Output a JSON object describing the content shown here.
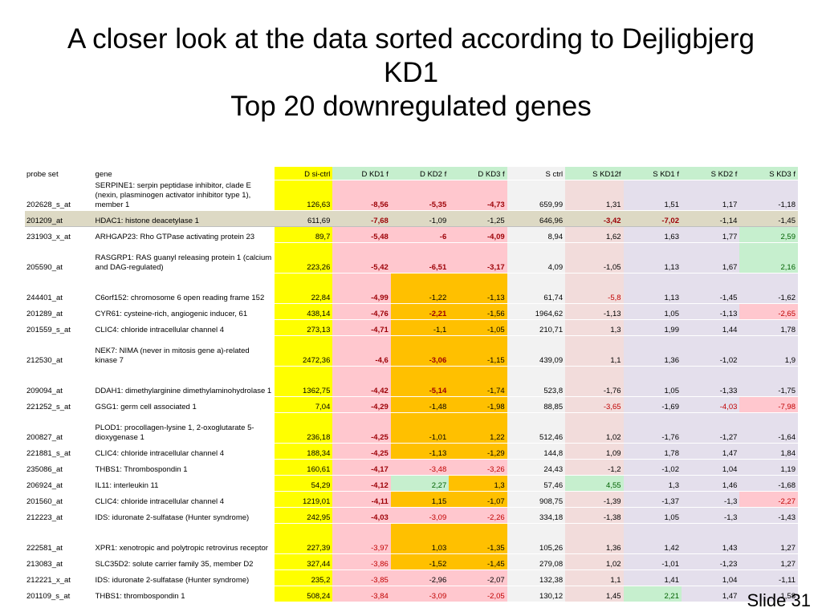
{
  "title": {
    "line1": "A closer look at the data sorted according to Dejligbjerg",
    "line2": "KD1",
    "line3": "Top 20 downregulated genes"
  },
  "table": {
    "headers": [
      "probe set",
      "gene",
      "D si-ctrl",
      "D KD1 f",
      "D KD2 f",
      "D KD3 f",
      "S ctrl",
      "S KD12f",
      "S KD1 f",
      "S KD2 f",
      "S KD3 f"
    ],
    "rows": [
      {
        "probe": "202628_s_at",
        "gene": "SERPINE1: serpin peptidase inhibitor, clade E (nexin, plasminogen activator inhibitor type 1), member 1",
        "vals": [
          "126,63",
          "-8,56",
          "-5,35",
          "-4,73",
          "659,99",
          "1,31",
          "1,51",
          "1,17",
          "-1,18"
        ]
      },
      {
        "probe": "201209_at",
        "gene": "HDAC1: histone deacetylase 1",
        "vals": [
          "611,69",
          "-7,68",
          "-1,09",
          "-1,25",
          "646,96",
          "-3,42",
          "-7,02",
          "-1,14",
          "-1,45"
        ]
      },
      {
        "probe": "231903_x_at",
        "gene": "ARHGAP23: Rho GTPase activating protein 23",
        "vals": [
          "89,7",
          "-5,48",
          "-6",
          "-4,09",
          "8,94",
          "1,62",
          "1,63",
          "1,77",
          "2,59"
        ]
      },
      {
        "probe": "205590_at",
        "gene": "RASGRP1: RAS guanyl releasing protein 1 (calcium and DAG-regulated)",
        "vals": [
          "223,26",
          "-5,42",
          "-6,51",
          "-3,17",
          "4,09",
          "-1,05",
          "1,13",
          "1,67",
          "2,16"
        ]
      },
      {
        "probe": "244401_at",
        "gene": "C6orf152: chromosome 6 open reading frame 152",
        "vals": [
          "22,84",
          "-4,99",
          "-1,22",
          "-1,13",
          "61,74",
          "-5,8",
          "1,13",
          "-1,45",
          "-1,62"
        ]
      },
      {
        "probe": "201289_at",
        "gene": "CYR61: cysteine-rich, angiogenic inducer, 61",
        "vals": [
          "438,14",
          "-4,76",
          "-2,21",
          "-1,56",
          "1964,62",
          "-1,13",
          "1,05",
          "-1,13",
          "-2,65"
        ]
      },
      {
        "probe": "201559_s_at",
        "gene": "CLIC4: chloride intracellular channel 4",
        "vals": [
          "273,13",
          "-4,71",
          "-1,1",
          "-1,05",
          "210,71",
          "1,3",
          "1,99",
          "1,44",
          "1,78"
        ]
      },
      {
        "probe": "212530_at",
        "gene": "NEK7: NIMA (never in mitosis gene a)-related kinase 7",
        "vals": [
          "2472,36",
          "-4,6",
          "-3,06",
          "-1,15",
          "439,09",
          "1,1",
          "1,36",
          "-1,02",
          "1,9"
        ]
      },
      {
        "probe": "209094_at",
        "gene": "DDAH1: dimethylarginine dimethylaminohydrolase 1",
        "vals": [
          "1362,75",
          "-4,42",
          "-5,14",
          "-1,74",
          "523,8",
          "-1,76",
          "1,05",
          "-1,33",
          "-1,75"
        ]
      },
      {
        "probe": "221252_s_at",
        "gene": "GSG1: germ cell associated 1",
        "vals": [
          "7,04",
          "-4,29",
          "-1,48",
          "-1,98",
          "88,85",
          "-3,65",
          "-1,69",
          "-4,03",
          "-7,98"
        ]
      },
      {
        "probe": "200827_at",
        "gene": "PLOD1: procollagen-lysine 1, 2-oxoglutarate 5-dioxygenase 1",
        "vals": [
          "236,18",
          "-4,25",
          "-1,01",
          "1,22",
          "512,46",
          "1,02",
          "-1,76",
          "-1,27",
          "-1,64"
        ]
      },
      {
        "probe": "221881_s_at",
        "gene": "CLIC4: chloride intracellular channel 4",
        "vals": [
          "188,34",
          "-4,25",
          "-1,13",
          "-1,29",
          "144,8",
          "1,09",
          "1,78",
          "1,47",
          "1,84"
        ]
      },
      {
        "probe": "235086_at",
        "gene": "THBS1: Thrombospondin 1",
        "vals": [
          "160,61",
          "-4,17",
          "-3,48",
          "-3,26",
          "24,43",
          "-1,2",
          "-1,02",
          "1,04",
          "1,19"
        ]
      },
      {
        "probe": "206924_at",
        "gene": "IL11: interleukin 11",
        "vals": [
          "54,29",
          "-4,12",
          "2,27",
          "1,3",
          "57,46",
          "4,55",
          "1,3",
          "1,46",
          "-1,68"
        ]
      },
      {
        "probe": "201560_at",
        "gene": "CLIC4: chloride intracellular channel 4",
        "vals": [
          "1219,01",
          "-4,11",
          "1,15",
          "-1,07",
          "908,75",
          "-1,39",
          "-1,37",
          "-1,3",
          "-2,27"
        ]
      },
      {
        "probe": "212223_at",
        "gene": "IDS: iduronate 2-sulfatase (Hunter syndrome)",
        "vals": [
          "242,95",
          "-4,03",
          "-3,09",
          "-2,26",
          "334,18",
          "-1,38",
          "1,05",
          "-1,3",
          "-1,43"
        ]
      },
      {
        "probe": "222581_at",
        "gene": "XPR1: xenotropic and polytropic retrovirus receptor",
        "vals": [
          "227,39",
          "-3,97",
          "1,03",
          "-1,35",
          "105,26",
          "1,36",
          "1,42",
          "1,43",
          "1,27"
        ]
      },
      {
        "probe": "213083_at",
        "gene": "SLC35D2: solute carrier family 35, member D2",
        "vals": [
          "327,44",
          "-3,86",
          "-1,52",
          "-1,45",
          "279,08",
          "1,02",
          "-1,01",
          "-1,23",
          "1,27"
        ]
      },
      {
        "probe": "212221_x_at",
        "gene": "IDS: iduronate 2-sulfatase (Hunter syndrome)",
        "vals": [
          "235,2",
          "-3,85",
          "-2,96",
          "-2,07",
          "132,38",
          "1,1",
          "1,41",
          "1,04",
          "-1,11"
        ]
      },
      {
        "probe": "201109_s_at",
        "gene": "THBS1: thrombospondin 1",
        "vals": [
          "508,24",
          "-3,84",
          "-3,09",
          "-2,05",
          "130,12",
          "1,45",
          "2,21",
          "1,47",
          "1,58"
        ]
      }
    ]
  },
  "footer": {
    "slide_label": "Slide 31"
  },
  "colors": {
    "yellow": "#ffff00",
    "pink": "#ffc7ce",
    "light_pink": "#f2dcdb",
    "orange": "#ffc000",
    "light_gray": "#f2f2f2",
    "lavender": "#e4dfec",
    "green": "#c6efce",
    "highlight_row": "#ddd9c4"
  }
}
